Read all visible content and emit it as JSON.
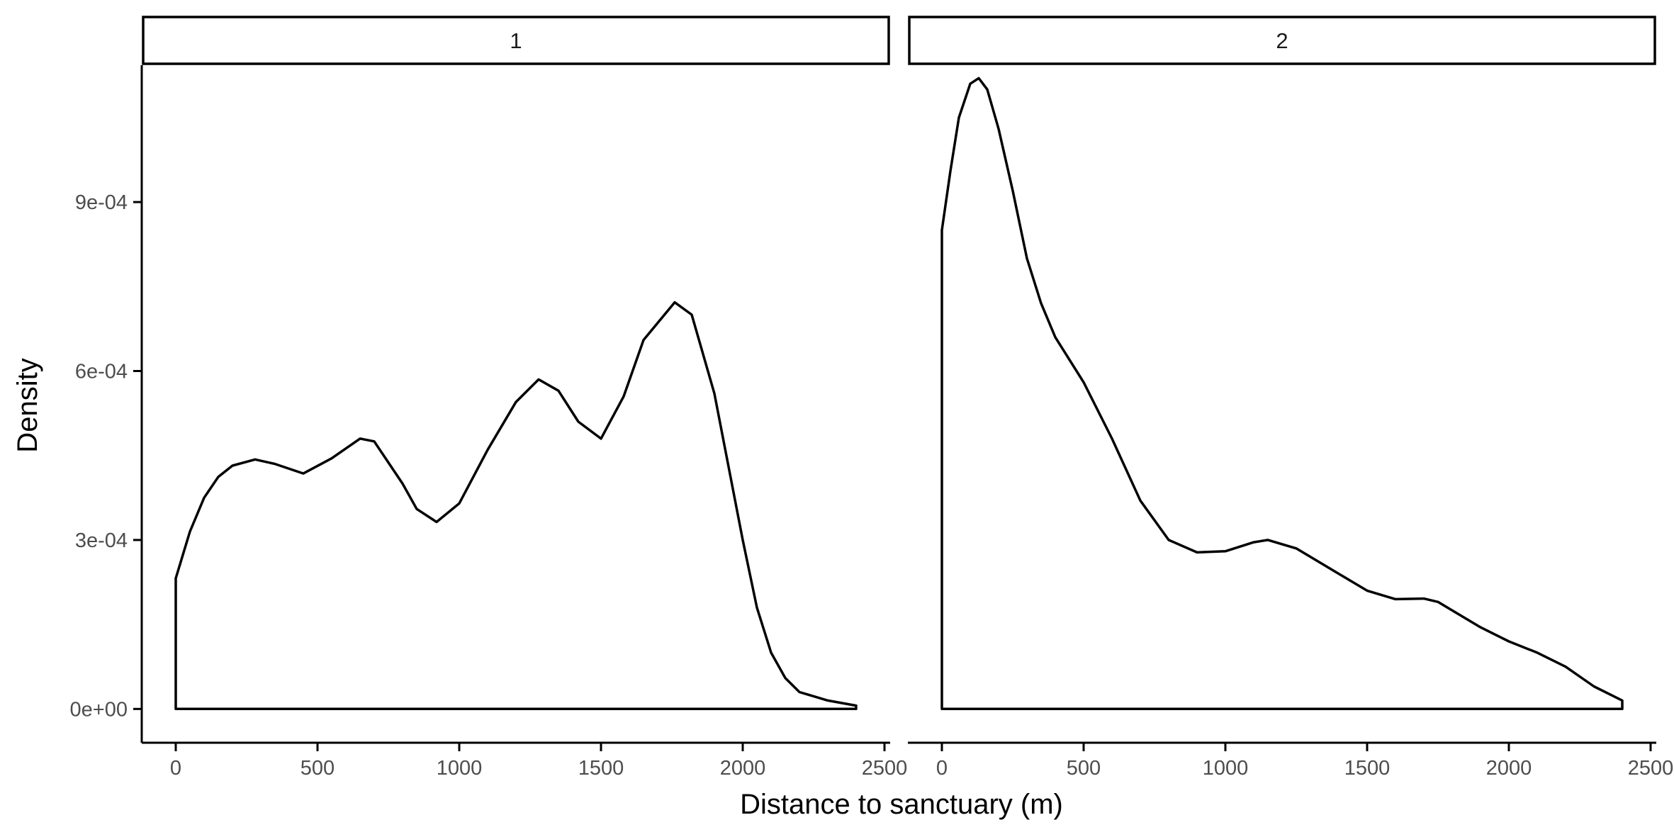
{
  "chart_data": {
    "type": "area",
    "xlabel": "Distance to sanctuary (m)",
    "ylabel": "Density",
    "xlim": [
      -120,
      2520
    ],
    "ylim": [
      -6e-05,
      0.001143
    ],
    "x_ticks": [
      0,
      500,
      1000,
      1500,
      2000,
      2500
    ],
    "x_tick_labels": [
      "0",
      "500",
      "1000",
      "1500",
      "2000",
      "2500"
    ],
    "y_ticks": [
      0,
      0.0003,
      0.0006,
      0.0009
    ],
    "y_tick_labels": [
      "0e+00",
      "3e-04",
      "6e-04",
      "9e-04"
    ],
    "grid": false,
    "panels": [
      {
        "strip_label": "1",
        "x": [
          0,
          50,
          100,
          150,
          200,
          280,
          350,
          450,
          550,
          650,
          700,
          800,
          850,
          920,
          1000,
          1100,
          1200,
          1280,
          1350,
          1420,
          1500,
          1580,
          1650,
          1760,
          1820,
          1900,
          1950,
          2000,
          2050,
          2100,
          2150,
          2200,
          2300,
          2400
        ],
        "y": [
          0.000232,
          0.000315,
          0.000375,
          0.000412,
          0.000432,
          0.000443,
          0.000435,
          0.000418,
          0.000445,
          0.00048,
          0.000475,
          0.0004,
          0.000355,
          0.000332,
          0.000365,
          0.00046,
          0.000545,
          0.000585,
          0.000565,
          0.00051,
          0.00048,
          0.000555,
          0.000655,
          0.000722,
          0.0007,
          0.00056,
          0.00043,
          0.0003,
          0.00018,
          0.0001,
          5.5e-05,
          3e-05,
          1.5e-05,
          6e-06
        ]
      },
      {
        "strip_label": "2",
        "x": [
          0,
          30,
          60,
          100,
          130,
          160,
          200,
          250,
          300,
          350,
          400,
          500,
          600,
          700,
          800,
          900,
          1000,
          1100,
          1150,
          1250,
          1400,
          1500,
          1600,
          1700,
          1750,
          1800,
          1900,
          2000,
          2100,
          2200,
          2300,
          2400
        ],
        "y": [
          0.00085,
          0.000955,
          0.00105,
          0.00111,
          0.00112,
          0.0011,
          0.00103,
          0.00092,
          0.0008,
          0.00072,
          0.00066,
          0.00058,
          0.00048,
          0.00037,
          0.0003,
          0.000278,
          0.00028,
          0.000296,
          0.0003,
          0.000285,
          0.00024,
          0.00021,
          0.000195,
          0.000196,
          0.00019,
          0.000175,
          0.000145,
          0.00012,
          0.0001,
          7.5e-05,
          4e-05,
          1.5e-05
        ]
      }
    ]
  }
}
